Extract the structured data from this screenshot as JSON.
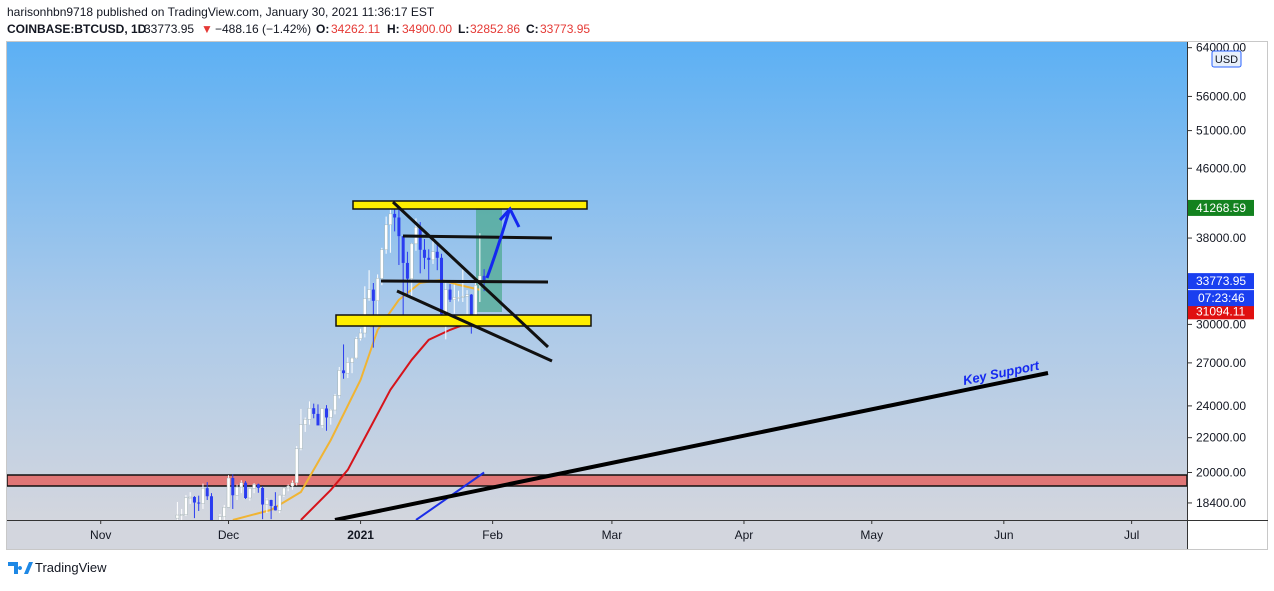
{
  "header": {
    "publisher": "harisonhbn9718 published on TradingView.com, January 30, 2021 11:36:17 EST",
    "symbol": "COINBASE:BTCUSD, 1D",
    "last": "33773.95",
    "arrow": "▼",
    "change": "−488.16 (−1.42%)",
    "o_label": "O:",
    "o": "34262.11",
    "h_label": "H:",
    "h": "34900.00",
    "l_label": "L:",
    "l": "32852.86",
    "c_label": "C:",
    "c": "33773.95"
  },
  "footer": {
    "brand": "TradingView"
  },
  "chart_data": {
    "type": "candlestick",
    "log_scale": true,
    "currency": "USD",
    "up_color": "#ffffff",
    "down_color": "#2a3cf0",
    "xlim": [
      -22,
      255
    ],
    "xticks": [
      {
        "value": 0,
        "label": "Nov"
      },
      {
        "value": 30,
        "label": "Dec"
      },
      {
        "value": 61,
        "label": "2021"
      },
      {
        "value": 92,
        "label": "Feb"
      },
      {
        "value": 120,
        "label": "Mar"
      },
      {
        "value": 151,
        "label": "Apr"
      },
      {
        "value": 181,
        "label": "May"
      },
      {
        "value": 212,
        "label": "Jun"
      },
      {
        "value": 242,
        "label": "Jul"
      }
    ],
    "ylim": [
      17560,
      65000
    ],
    "yticks": [
      {
        "value": 18400,
        "label": "18400.00"
      },
      {
        "value": 20000,
        "label": "20000.00"
      },
      {
        "value": 22000,
        "label": "22000.00"
      },
      {
        "value": 24000,
        "label": "24000.00"
      },
      {
        "value": 27000,
        "label": "27000.00"
      },
      {
        "value": 30000,
        "label": "30000.00"
      },
      {
        "value": 38000,
        "label": "38000.00"
      },
      {
        "value": 46000,
        "label": "46000.00"
      },
      {
        "value": 51000,
        "label": "51000.00"
      },
      {
        "value": 56000,
        "label": "56000.00"
      },
      {
        "value": 64000,
        "label": "64000.00"
      }
    ],
    "candles": {
      "x": [
        18,
        19,
        20,
        21,
        22,
        23,
        24,
        25,
        26,
        27,
        28,
        29,
        30,
        31,
        32,
        33,
        34,
        35,
        36,
        37,
        38,
        39,
        40,
        41,
        42,
        43,
        44,
        45,
        46,
        47,
        48,
        49,
        50,
        51,
        52,
        53,
        54,
        55,
        56,
        57,
        58,
        59,
        60,
        61,
        62,
        63,
        64,
        65,
        66,
        67,
        68,
        69,
        70,
        71,
        72,
        73,
        74,
        75,
        76,
        77,
        78,
        79,
        80,
        81,
        82,
        83,
        84,
        85,
        86,
        87,
        88,
        89,
        90
      ],
      "open": [
        17650,
        17800,
        17820,
        18660,
        18700,
        18420,
        18370,
        19160,
        18740,
        17150,
        17130,
        17720,
        18180,
        19700,
        18790,
        19220,
        19450,
        18650,
        19150,
        19360,
        19170,
        18320,
        18550,
        18250,
        18030,
        18800,
        19170,
        19270,
        19440,
        21350,
        22800,
        23130,
        23850,
        23480,
        22750,
        23830,
        23250,
        23730,
        24700,
        26450,
        26250,
        27030,
        27360,
        28850,
        29300,
        32200,
        33000,
        32000,
        34030,
        36800,
        39400,
        40600,
        40200,
        38200,
        35500,
        34000,
        37400,
        39150,
        36800,
        36000,
        35800,
        36600,
        36000,
        30850,
        33000,
        32100,
        32300,
        32300,
        32400,
        32550,
        30450,
        33400,
        34262.11
      ],
      "high": [
        18450,
        18100,
        18800,
        18950,
        18750,
        18770,
        19400,
        19480,
        18900,
        17450,
        17850,
        18300,
        19850,
        19900,
        19350,
        19580,
        19540,
        19170,
        19420,
        19400,
        19260,
        18640,
        18560,
        18950,
        18430,
        19050,
        19350,
        19570,
        21500,
        23800,
        23250,
        24300,
        24150,
        24100,
        23800,
        24050,
        23800,
        24800,
        26700,
        28400,
        27400,
        27400,
        29000,
        29650,
        33300,
        34800,
        33600,
        34400,
        37000,
        40300,
        41900,
        41350,
        41350,
        38200,
        36600,
        37500,
        40100,
        39700,
        37900,
        36850,
        37850,
        37300,
        36400,
        33800,
        33500,
        33450,
        32900,
        34850,
        32950,
        32600,
        33800,
        38500,
        34900
      ],
      "low": [
        17350,
        17350,
        17750,
        18350,
        17650,
        18000,
        18100,
        18550,
        16300,
        16500,
        16900,
        17550,
        18180,
        18100,
        18550,
        18900,
        18600,
        18520,
        18900,
        18920,
        17600,
        17900,
        17600,
        18020,
        17900,
        18700,
        19000,
        19080,
        19300,
        21250,
        22350,
        22800,
        23200,
        22800,
        22600,
        22420,
        22800,
        23450,
        24500,
        25850,
        25900,
        26250,
        27300,
        28700,
        28950,
        32000,
        28150,
        30000,
        33400,
        36400,
        36500,
        38700,
        35300,
        30500,
        32500,
        32400,
        36700,
        34500,
        34900,
        33900,
        35400,
        34800,
        30100,
        28800,
        31900,
        30900,
        31950,
        31900,
        30850,
        29250,
        30000,
        31900,
        32852.86
      ],
      "close": [
        17800,
        17820,
        18660,
        18700,
        18420,
        18370,
        19160,
        18740,
        17150,
        17130,
        17720,
        18180,
        19700,
        18790,
        19220,
        19450,
        18650,
        19150,
        19360,
        19170,
        18320,
        18550,
        18250,
        18030,
        18800,
        19170,
        19270,
        19440,
        21350,
        22800,
        23130,
        23850,
        23480,
        22750,
        23830,
        23250,
        23730,
        24700,
        26450,
        26250,
        27030,
        27360,
        28850,
        29300,
        32200,
        33000,
        32000,
        34030,
        36800,
        39400,
        40600,
        40200,
        38200,
        35500,
        34000,
        37400,
        39150,
        36800,
        36000,
        35800,
        36600,
        36000,
        30850,
        33000,
        32100,
        32300,
        32300,
        32400,
        32550,
        30450,
        33400,
        34262.11,
        33773.95
      ]
    },
    "ma_lines": [
      {
        "color": "#f0b433",
        "x": [
          31,
          40,
          47,
          54,
          61,
          65,
          70,
          75,
          80,
          84,
          89
        ],
        "values": [
          17560,
          18050,
          18960,
          21860,
          25780,
          29550,
          32090,
          33610,
          33890,
          33430,
          32980
        ]
      },
      {
        "color": "#d6141b",
        "x": [
          47,
          54,
          58,
          63,
          68,
          73,
          77,
          82,
          87,
          89
        ],
        "values": [
          17560,
          19070,
          20150,
          22470,
          25080,
          27230,
          28760,
          29550,
          30210,
          30380
        ]
      },
      {
        "color": "#1b2ee8",
        "x": [
          74,
          90
        ],
        "values": [
          17560,
          20000
        ]
      }
    ],
    "price_tags": [
      {
        "value": 41268.59,
        "color": "#13821f"
      },
      {
        "value": 31094.11,
        "color": "#e01010"
      },
      {
        "value": 33773.95,
        "color": "#1a3ff0",
        "countdown": "07:23:46"
      }
    ],
    "annotation": "Key Support"
  }
}
